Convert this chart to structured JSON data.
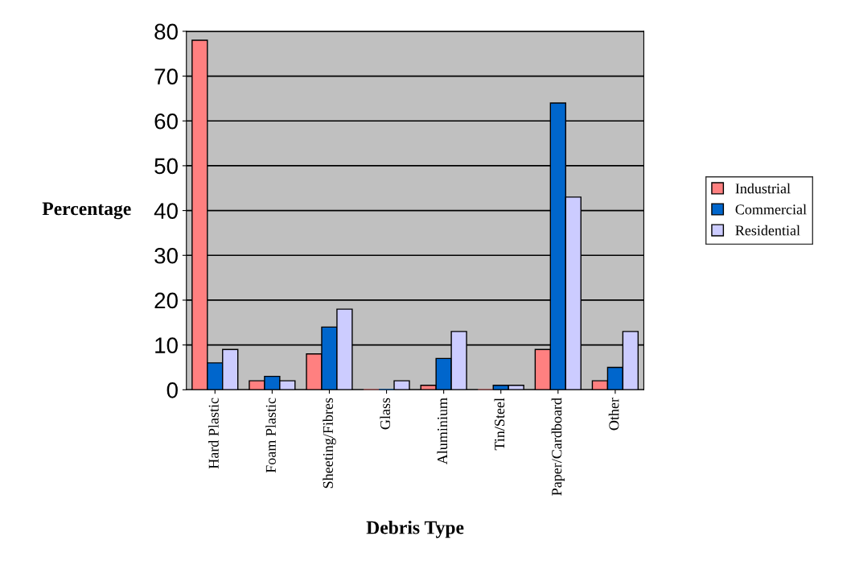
{
  "chart_data": {
    "type": "bar",
    "xlabel": "Debris Type",
    "ylabel": "Percentage",
    "categories": [
      "Hard Plastic",
      "Foam Plastic",
      "Sheeting/Fibres",
      "Glass",
      "Aluminium",
      "Tin/Steel",
      "Paper/Cardboard",
      "Other"
    ],
    "series": [
      {
        "name": "Industrial",
        "color": "#ff8080",
        "values": [
          78,
          2,
          8,
          0,
          1,
          0,
          9,
          2
        ]
      },
      {
        "name": "Commercial",
        "color": "#0066cc",
        "values": [
          6,
          3,
          14,
          0,
          7,
          1,
          64,
          5
        ]
      },
      {
        "name": "Residential",
        "color": "#ccccff",
        "values": [
          9,
          2,
          18,
          2,
          13,
          1,
          43,
          13
        ]
      }
    ],
    "ylim": [
      0,
      80
    ],
    "yticks": [
      0,
      10,
      20,
      30,
      40,
      50,
      60,
      70,
      80
    ],
    "grid": "y",
    "legend": "right"
  }
}
